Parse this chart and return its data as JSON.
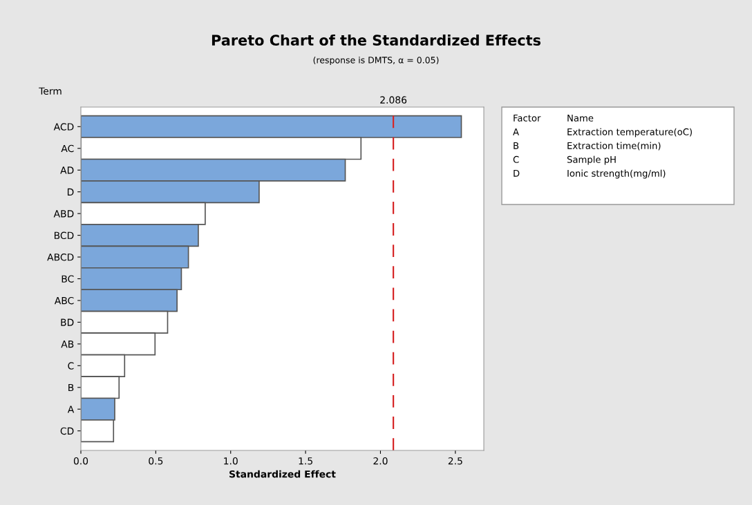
{
  "chart_data": {
    "type": "bar",
    "orientation": "horizontal",
    "title": "Pareto Chart of the Standardized Effects",
    "subtitle": "(response is DMTS, α = 0.05)",
    "xlabel": "Standardized Effect",
    "ylabel": "Term",
    "categories": [
      "ACD",
      "AC",
      "AD",
      "D",
      "ABD",
      "BCD",
      "ABCD",
      "BC",
      "ABC",
      "BD",
      "AB",
      "C",
      "B",
      "A",
      "CD"
    ],
    "values": [
      2.54,
      1.87,
      1.765,
      1.19,
      0.83,
      0.784,
      0.718,
      0.671,
      0.642,
      0.579,
      0.495,
      0.292,
      0.255,
      0.226,
      0.218
    ],
    "colors": [
      "#7ba7db",
      "#ffffff",
      "#7ba7db",
      "#7ba7db",
      "#ffffff",
      "#7ba7db",
      "#7ba7db",
      "#7ba7db",
      "#7ba7db",
      "#ffffff",
      "#ffffff",
      "#ffffff",
      "#ffffff",
      "#7ba7db",
      "#ffffff"
    ],
    "xlim": [
      0,
      2.69
    ],
    "xticks": [
      {
        "value": 0,
        "label": "0.0"
      },
      0.5,
      {
        "value": 1,
        "label": "1.0"
      },
      1.5,
      {
        "value": 2,
        "label": "2.0"
      },
      2.5
    ],
    "ref_lines": [
      {
        "axis": "x",
        "value": 2.086,
        "label": "2.086",
        "color": "#d62728",
        "line_style": "dashed"
      }
    ],
    "annotations": [
      "Factor",
      "Name",
      "A",
      "Extraction temperature(oC)",
      "B",
      "Extraction time(min)",
      "C",
      "Sample pH",
      "D",
      "Ionic strength(mg/ml)"
    ],
    "grid": false,
    "legend": false
  }
}
